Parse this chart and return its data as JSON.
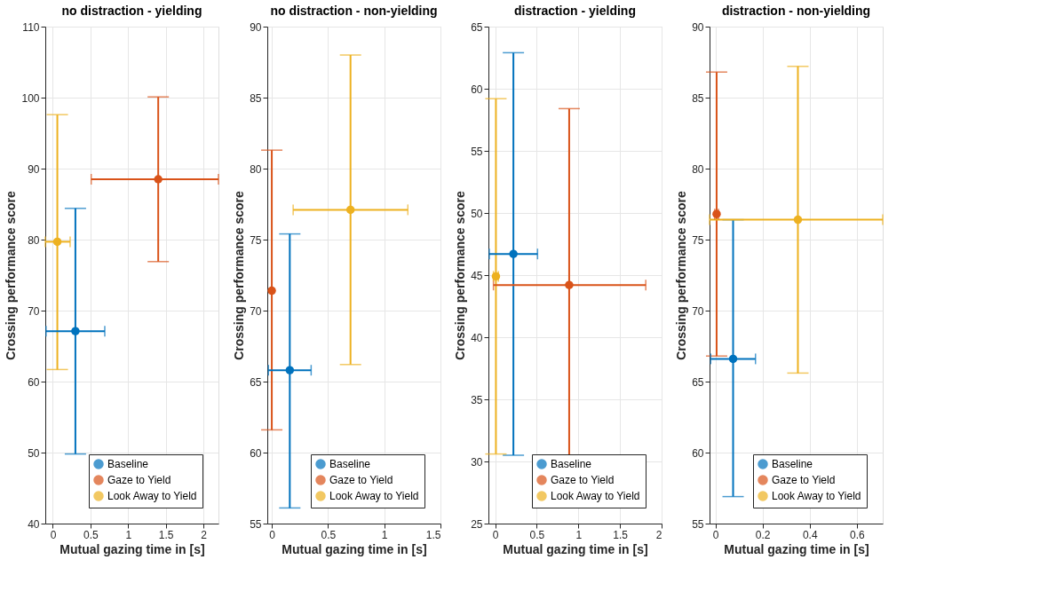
{
  "chart_data": [
    {
      "type": "scatter",
      "title": "no distraction - yielding",
      "xlabel": "Mutual gazing time in [s]",
      "ylabel": "Crossing performance score",
      "xlim": [
        -0.1,
        2.2
      ],
      "xticks": [
        0,
        0.5,
        1,
        1.5,
        2
      ],
      "ylim": [
        40,
        110
      ],
      "yticks": [
        40,
        50,
        60,
        70,
        80,
        90,
        100,
        110
      ],
      "grid": true,
      "legend": "bottom right",
      "marker": "circle",
      "series": [
        {
          "name": "Baseline",
          "color": "#0072bd",
          "x": [
            0.3
          ],
          "values": [
            67.1
          ],
          "errors": [
            [
              49.8,
              84.4
            ]
          ],
          "xerrors": [
            0.39
          ]
        },
        {
          "name": "Gaze to Yield",
          "color": "#d95319",
          "x": [
            1.4
          ],
          "values": [
            88.5
          ],
          "errors": [
            [
              76.9,
              100.1
            ]
          ],
          "xerrors": [
            [
              0.51,
              2.2
            ]
          ]
        },
        {
          "name": "Look Away to Yield",
          "color": "#edb120",
          "x": [
            0.06
          ],
          "values": [
            79.7
          ],
          "errors": [
            [
              61.7,
              97.6
            ]
          ],
          "xerrors": [
            [
              -0.1,
              0.23
            ]
          ]
        }
      ]
    },
    {
      "type": "scatter",
      "title": "no distraction - non-yielding",
      "xlabel": "Mutual gazing time in [s]",
      "ylabel": "Crossing performance score",
      "xlim": [
        -0.04,
        1.5
      ],
      "xticks": [
        0,
        0.5,
        1,
        1.5
      ],
      "ylim": [
        55,
        90
      ],
      "yticks": [
        55,
        60,
        65,
        70,
        75,
        80,
        85,
        90
      ],
      "grid": true,
      "legend": "bottom right",
      "marker": "circle",
      "series": [
        {
          "name": "Baseline",
          "color": "#0072bd",
          "x": [
            0.16
          ],
          "values": [
            65.8
          ],
          "errors": [
            [
              56.1,
              75.4
            ]
          ],
          "xerrors": [
            0.19
          ]
        },
        {
          "name": "Gaze to Yield",
          "color": "#d95319",
          "x": [
            0.0
          ],
          "values": [
            71.4
          ],
          "errors": [
            [
              61.6,
              81.3
            ]
          ],
          "xerrors": [
            null
          ]
        },
        {
          "name": "Look Away to Yield",
          "color": "#edb120",
          "x": [
            0.7
          ],
          "values": [
            77.1
          ],
          "errors": [
            [
              66.2,
              88.0
            ]
          ],
          "xerrors": [
            [
              0.19,
              1.21
            ]
          ]
        }
      ]
    },
    {
      "type": "scatter",
      "title": "distraction - yielding",
      "xlabel": "Mutual gazing time in [s]",
      "ylabel": "Crossing performance score",
      "xlim": [
        -0.08,
        2
      ],
      "xticks": [
        0,
        0.5,
        1,
        1.5,
        2
      ],
      "ylim": [
        25,
        65
      ],
      "yticks": [
        25,
        30,
        35,
        40,
        45,
        50,
        55,
        60,
        65
      ],
      "grid": true,
      "legend": "bottom right",
      "marker": "circle",
      "series": [
        {
          "name": "Baseline",
          "color": "#0072bd",
          "x": [
            0.22
          ],
          "values": [
            46.7
          ],
          "errors": [
            [
              30.5,
              62.9
            ]
          ],
          "xerrors": [
            0.29
          ]
        },
        {
          "name": "Gaze to Yield",
          "color": "#d95319",
          "x": [
            0.89
          ],
          "values": [
            44.2
          ],
          "errors": [
            [
              30.0,
              58.4
            ]
          ],
          "xerrors": [
            [
              -0.02,
              1.81
            ]
          ]
        },
        {
          "name": "Look Away to Yield",
          "color": "#edb120",
          "x": [
            0.01
          ],
          "values": [
            44.9
          ],
          "errors": [
            [
              30.6,
              59.2
            ]
          ],
          "xerrors": [
            0.03
          ]
        }
      ]
    },
    {
      "type": "scatter",
      "title": "distraction - non-yielding",
      "xlabel": "Mutual gazing time in [s]",
      "ylabel": "Crossing performance score",
      "xlim": [
        -0.025,
        0.71
      ],
      "xticks": [
        0,
        0.2,
        0.4,
        0.6
      ],
      "ylim": [
        55,
        90
      ],
      "yticks": [
        55,
        60,
        65,
        70,
        75,
        80,
        85,
        90
      ],
      "grid": true,
      "legend": "bottom right",
      "marker": "circle",
      "series": [
        {
          "name": "Baseline",
          "color": "#0072bd",
          "x": [
            0.075
          ],
          "values": [
            66.6
          ],
          "errors": [
            [
              56.9,
              76.4
            ]
          ],
          "xerrors": [
            0.095
          ]
        },
        {
          "name": "Gaze to Yield",
          "color": "#d95319",
          "x": [
            0.005
          ],
          "values": [
            76.8
          ],
          "errors": [
            [
              66.8,
              86.8
            ]
          ],
          "xerrors": [
            0.008
          ]
        },
        {
          "name": "Look Away to Yield",
          "color": "#edb120",
          "x": [
            0.35
          ],
          "values": [
            76.4
          ],
          "errors": [
            [
              65.6,
              87.2
            ]
          ],
          "xerrors": [
            [
              -0.025,
              0.71
            ]
          ]
        }
      ]
    }
  ]
}
